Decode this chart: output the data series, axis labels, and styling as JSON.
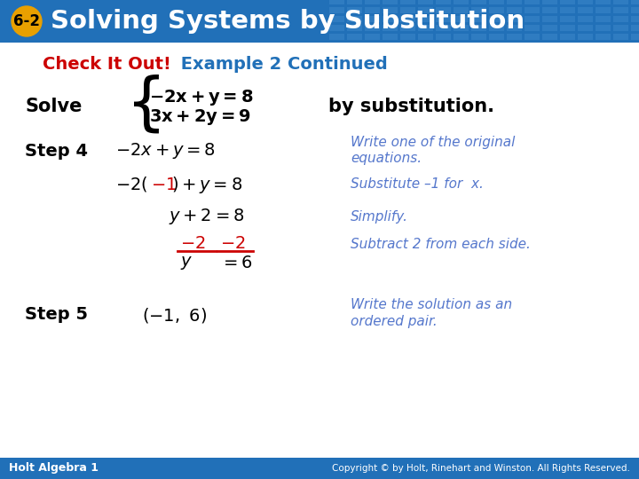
{
  "title_bg_color": "#2170b8",
  "title_text": "Solving Systems by Substitution",
  "title_badge": "6-2",
  "title_badge_bg": "#e8a000",
  "title_text_color": "#ffffff",
  "subtitle_check": "Check It Out!",
  "subtitle_check_color": "#cc0000",
  "subtitle_rest": " Example 2 Continued",
  "subtitle_rest_color": "#2170b8",
  "body_bg": "#f0f0f0",
  "bottom_bar_color": "#2170b8",
  "bottom_left": "Holt Algebra 1",
  "bottom_right": "Copyright © by Holt, Rinehart and Winston. All Rights Reserved.",
  "blue_text_color": "#5577cc",
  "red_text_color": "#cc0000",
  "black_text_color": "#000000",
  "grid_color": "#3a85c8"
}
